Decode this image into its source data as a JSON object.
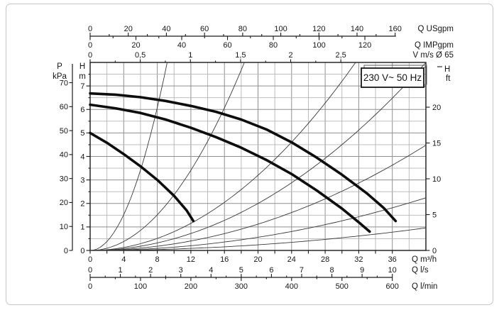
{
  "panel": {
    "background": "#ffffff",
    "border_color": "#c5c5c5"
  },
  "chart_data": {
    "type": "line",
    "voltage_label": "230 V~ 50 Hz",
    "axes": {
      "us_gpm": {
        "unit_label": "Q USgpm",
        "ticks_labeled": [
          0,
          20,
          40,
          60,
          80,
          100,
          120,
          140,
          160
        ],
        "minor_step": 10,
        "max": 160,
        "m3h_per_unit": 0.227124
      },
      "imp_gpm": {
        "unit_label": "Q IMPgpm",
        "ticks_labeled": [
          0,
          20,
          40,
          60,
          80,
          100,
          120
        ],
        "minor_step": 10,
        "max": 120,
        "m3h_per_unit": 0.272766
      },
      "v_ms": {
        "unit_label": "V m/s Ø 65",
        "tick_labels": [
          "0",
          "0,5",
          "1",
          "1,5",
          "2",
          "2,5"
        ],
        "tick_values": [
          0,
          0.5,
          1,
          1.5,
          2,
          2.5
        ],
        "minor_step": 0.25,
        "max": 2.5,
        "m3h_per_unit": 11.946
      },
      "h_m": {
        "header1": "H",
        "header2": "m",
        "min": 0,
        "max": 8,
        "ticks_labeled": [
          0,
          1,
          2,
          3,
          4,
          5,
          6,
          7
        ],
        "minor_step": 0.5
      },
      "p_kpa": {
        "header1": "P",
        "header2": "kPa",
        "ticks_labeled": [
          0,
          10,
          20,
          30,
          40,
          50,
          60,
          70
        ],
        "m_per_unit": 0.101972
      },
      "h_ft": {
        "header1": "H",
        "header2": "ft",
        "ticks_labeled": [
          0,
          5,
          10,
          15,
          20
        ],
        "m_per_unit": 0.3048
      },
      "q_m3h": {
        "unit_label": "Q m³/h",
        "ticks_labeled": [
          0,
          4,
          8,
          12,
          16,
          20,
          24,
          28,
          32,
          36
        ],
        "minor_step": 2,
        "min": 0,
        "max": 40
      },
      "q_ls": {
        "unit_label": "Q l/s",
        "ticks_labeled": [
          0,
          1,
          2,
          3,
          4,
          5,
          6,
          7,
          8,
          9,
          10
        ],
        "minor_step": 0.5,
        "m3h_per_unit": 3.6
      },
      "q_lmin": {
        "unit_label": "Q l/min",
        "ticks_labeled": [
          0,
          100,
          200,
          300,
          400,
          500,
          600
        ],
        "minor_step": 50,
        "m3h_per_unit": 0.06
      }
    },
    "pump_curves": [
      {
        "id": "pump_curve_max",
        "points": [
          [
            0,
            6.68
          ],
          [
            3,
            6.63
          ],
          [
            6,
            6.52
          ],
          [
            9,
            6.36
          ],
          [
            12,
            6.15
          ],
          [
            15,
            5.9
          ],
          [
            18,
            5.57
          ],
          [
            21,
            5.15
          ],
          [
            24,
            4.6
          ],
          [
            27,
            3.95
          ],
          [
            30,
            3.22
          ],
          [
            33,
            2.42
          ],
          [
            35,
            1.8
          ],
          [
            36.4,
            1.25
          ]
        ]
      },
      {
        "id": "pump_curve_mid",
        "points": [
          [
            0,
            6.2
          ],
          [
            3,
            6.05
          ],
          [
            6,
            5.85
          ],
          [
            9,
            5.57
          ],
          [
            12,
            5.22
          ],
          [
            15,
            4.82
          ],
          [
            18,
            4.37
          ],
          [
            21,
            3.85
          ],
          [
            24,
            3.25
          ],
          [
            27,
            2.55
          ],
          [
            30,
            1.78
          ],
          [
            32,
            1.2
          ],
          [
            33.3,
            0.8
          ]
        ]
      },
      {
        "id": "pump_curve_min",
        "points": [
          [
            0,
            5.0
          ],
          [
            2,
            4.58
          ],
          [
            4,
            4.1
          ],
          [
            6,
            3.58
          ],
          [
            8,
            3.0
          ],
          [
            10,
            2.32
          ],
          [
            11.5,
            1.7
          ],
          [
            12.3,
            1.25
          ]
        ]
      }
    ],
    "system_curves": {
      "model": "H = k · Q²",
      "k_values": [
        0.095,
        0.0237,
        0.008,
        0.005,
        0.0028,
        0.0014,
        0.0006
      ]
    }
  }
}
